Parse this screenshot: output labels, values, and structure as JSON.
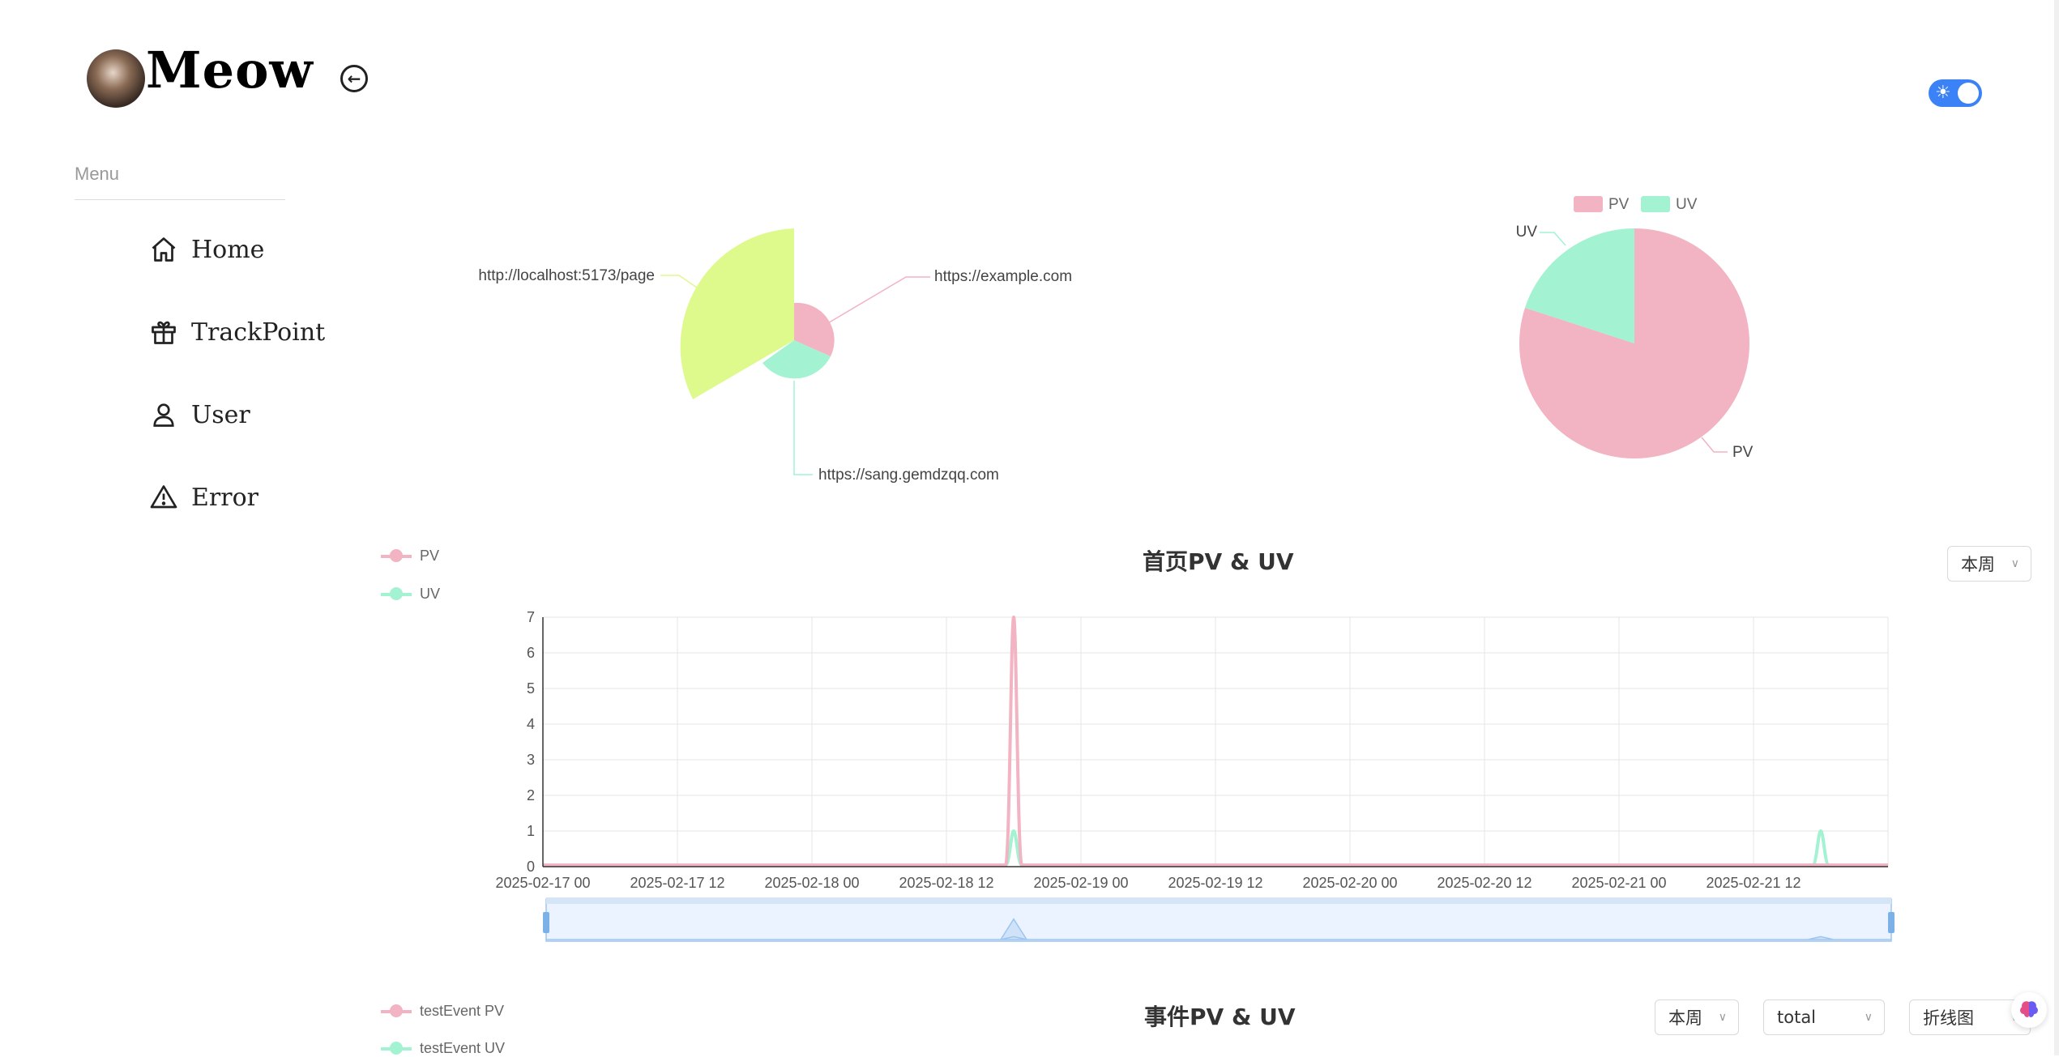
{
  "sidebar": {
    "logo_text": "Meow",
    "menu_label": "Menu",
    "items": [
      {
        "label": "Home",
        "icon": "home-icon"
      },
      {
        "label": "TrackPoint",
        "icon": "gift-icon"
      },
      {
        "label": "User",
        "icon": "user-icon"
      },
      {
        "label": "Error",
        "icon": "warning-icon"
      }
    ]
  },
  "header": {
    "theme_toggle": "light"
  },
  "colors": {
    "pv": "#f2b3c2",
    "uv": "#a3f2d2",
    "third": "#def98c",
    "accent": "#3b82f6"
  },
  "chart_data": [
    {
      "type": "pie",
      "variant": "rose",
      "labels": [
        "https://example.com",
        "https://sang.gemdzqq.com",
        "http://localhost:5173/page"
      ]
    },
    {
      "type": "pie",
      "legend": [
        "PV",
        "UV"
      ],
      "labels": [
        "PV",
        "UV"
      ],
      "values": [
        80,
        20
      ],
      "legend_placement": "top"
    },
    {
      "type": "line",
      "title": "首页PV & UV",
      "select": "本周",
      "ylim": [
        0,
        7
      ],
      "yticks": [
        "0",
        "1",
        "2",
        "3",
        "4",
        "5",
        "6",
        "7"
      ],
      "xticks": [
        "2025-02-17 00",
        "2025-02-17 12",
        "2025-02-18 00",
        "2025-02-18 12",
        "2025-02-19 00",
        "2025-02-19 12",
        "2025-02-20 00",
        "2025-02-20 12",
        "2025-02-21 00",
        "2025-02-21 12"
      ],
      "series": [
        {
          "name": "PV",
          "peaks": [
            {
              "x": 14,
              "y": 7
            }
          ]
        },
        {
          "name": "UV",
          "peaks": [
            {
              "x": 14,
              "y": 1
            },
            {
              "x": 38,
              "y": 1
            }
          ]
        }
      ],
      "grid": true,
      "legend_placement": "top-left"
    },
    {
      "type": "line",
      "title": "事件PV & UV",
      "selects": [
        "本周",
        "total",
        "折线图"
      ],
      "series": [
        {
          "name": "testEvent PV"
        },
        {
          "name": "testEvent UV"
        }
      ],
      "legend_placement": "top-left"
    }
  ]
}
